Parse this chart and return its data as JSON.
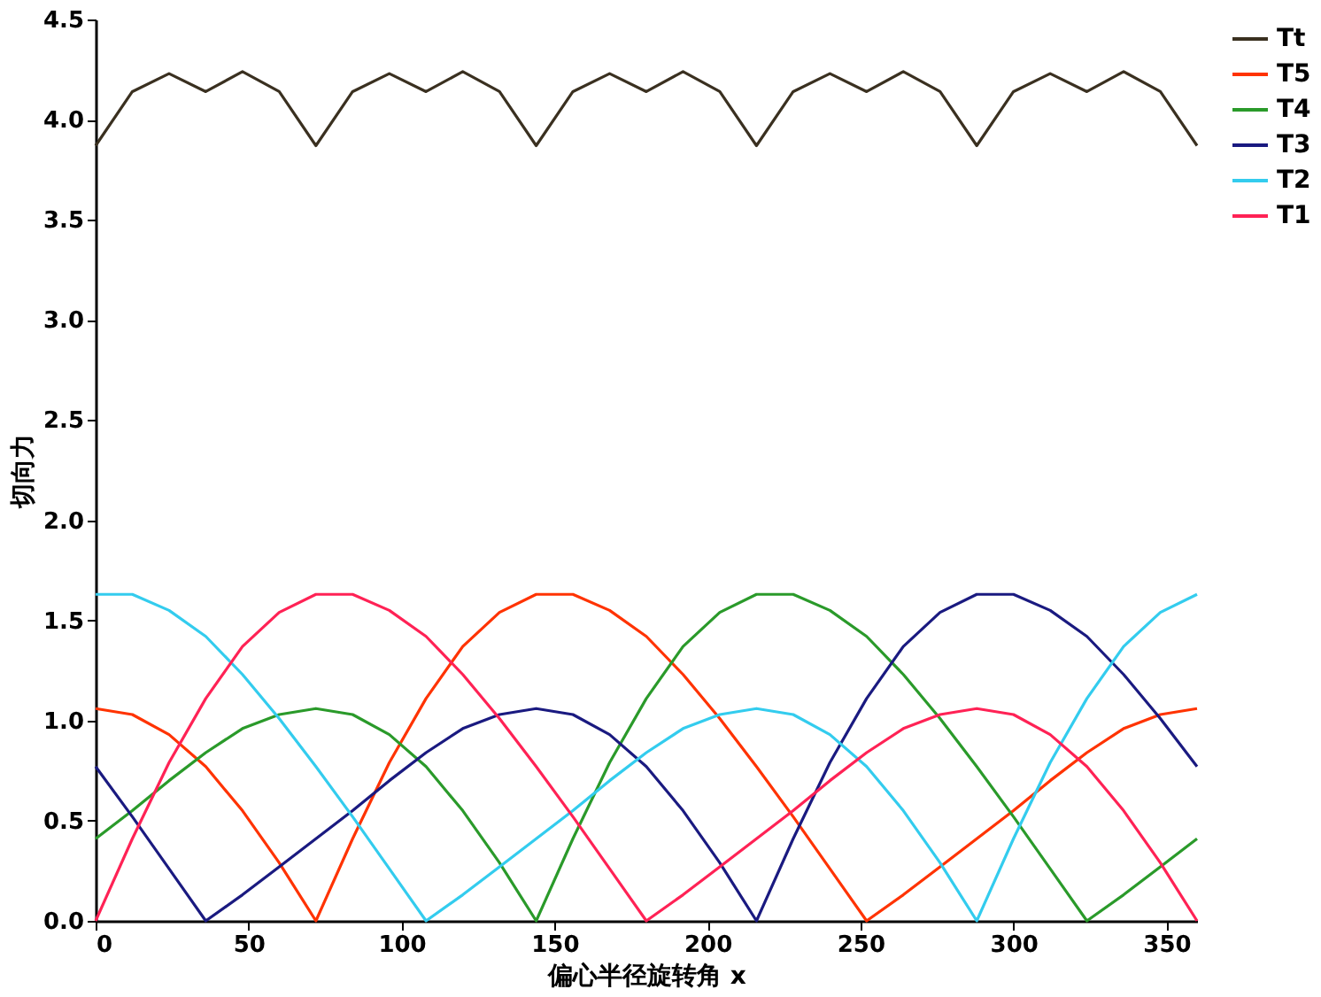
{
  "chart_data": {
    "type": "line",
    "xlabel": "偏心半径旋转角 x",
    "ylabel": "切向力",
    "x": [
      0,
      12,
      24,
      36,
      48,
      60,
      72,
      84,
      96,
      108,
      120,
      132,
      144,
      156,
      168,
      180,
      192,
      204,
      216,
      228,
      240,
      252,
      264,
      276,
      288,
      300,
      312,
      324,
      336,
      348,
      360
    ],
    "series": [
      {
        "name": "Tt",
        "color": "#3a3020",
        "values": [
          3.87,
          4.14,
          4.23,
          4.14,
          4.24,
          4.14,
          3.87,
          4.14,
          4.23,
          4.14,
          4.24,
          4.14,
          3.87,
          4.14,
          4.23,
          4.14,
          4.24,
          4.14,
          3.87,
          4.14,
          4.23,
          4.14,
          4.24,
          4.14,
          3.87,
          4.14,
          4.23,
          4.14,
          4.24,
          4.14,
          3.87
        ]
      },
      {
        "name": "T5",
        "color": "#ff3300",
        "values": [
          1.06,
          1.03,
          0.93,
          0.77,
          0.55,
          0.29,
          0,
          0.41,
          0.79,
          1.11,
          1.37,
          1.54,
          1.63,
          1.63,
          1.55,
          1.42,
          1.23,
          1.01,
          0.77,
          0.52,
          0.26,
          0,
          0.13,
          0.27,
          0.41,
          0.55,
          0.7,
          0.84,
          0.96,
          1.03,
          1.06
        ]
      },
      {
        "name": "T4",
        "color": "#2a9a2a",
        "values": [
          0.41,
          0.55,
          0.7,
          0.84,
          0.96,
          1.03,
          1.06,
          1.03,
          0.93,
          0.77,
          0.55,
          0.29,
          0,
          0.41,
          0.79,
          1.11,
          1.37,
          1.54,
          1.63,
          1.63,
          1.55,
          1.42,
          1.23,
          1.01,
          0.77,
          0.52,
          0.26,
          0,
          0.13,
          0.27,
          0.41
        ]
      },
      {
        "name": "T3",
        "color": "#1a1a80",
        "values": [
          0.77,
          0.52,
          0.26,
          0,
          0.13,
          0.27,
          0.41,
          0.55,
          0.7,
          0.84,
          0.96,
          1.03,
          1.06,
          1.03,
          0.93,
          0.77,
          0.55,
          0.29,
          0,
          0.41,
          0.79,
          1.11,
          1.37,
          1.54,
          1.63,
          1.63,
          1.55,
          1.42,
          1.23,
          1.01,
          0.77
        ]
      },
      {
        "name": "T2",
        "color": "#33ccee",
        "values": [
          1.63,
          1.63,
          1.55,
          1.42,
          1.23,
          1.01,
          0.77,
          0.52,
          0.26,
          0,
          0.13,
          0.27,
          0.41,
          0.55,
          0.7,
          0.84,
          0.96,
          1.03,
          1.06,
          1.03,
          0.93,
          0.77,
          0.55,
          0.29,
          0,
          0.41,
          0.79,
          1.11,
          1.37,
          1.54,
          1.63
        ]
      },
      {
        "name": "T1",
        "color": "#ff2255",
        "values": [
          0,
          0.41,
          0.79,
          1.11,
          1.37,
          1.54,
          1.63,
          1.63,
          1.55,
          1.42,
          1.23,
          1.01,
          0.77,
          0.52,
          0.26,
          0,
          0.13,
          0.27,
          0.41,
          0.55,
          0.7,
          0.84,
          0.96,
          1.03,
          1.06,
          1.03,
          0.93,
          0.77,
          0.55,
          0.29,
          0
        ]
      }
    ],
    "xlim": [
      0,
      360
    ],
    "xticks": [
      0,
      50,
      100,
      150,
      200,
      250,
      300,
      350
    ],
    "ylim": [
      0,
      4.5
    ],
    "yticks": [
      {
        "value": 0,
        "label": "0.0"
      },
      {
        "value": 0.5,
        "label": "0.5"
      },
      {
        "value": 1,
        "label": "1.0"
      },
      {
        "value": 1.5,
        "label": "1.5"
      },
      {
        "value": 2,
        "label": "2.0"
      },
      {
        "value": 2.5,
        "label": "2.5"
      },
      {
        "value": 3,
        "label": "3.0"
      },
      {
        "value": 3.5,
        "label": "3.5"
      },
      {
        "value": 4,
        "label": "4.0"
      },
      {
        "value": 4.5,
        "label": "4.5"
      }
    ],
    "legend": "right",
    "grid": false,
    "marker": "none",
    "line_style": "solid"
  }
}
